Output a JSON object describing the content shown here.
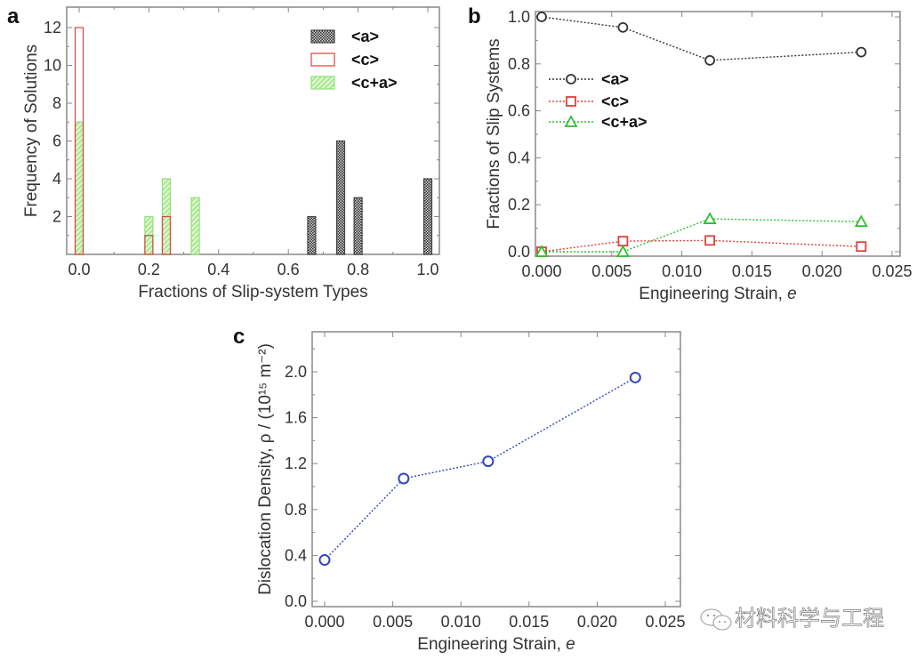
{
  "watermark": {
    "text": "材料科学与工程",
    "icon": "wechat-icon"
  },
  "colors": {
    "a": "#333333",
    "c": "#e0403a",
    "ca": "#2fbf2f",
    "density": "#3346c0",
    "frame": "#888888"
  },
  "chart_data": [
    {
      "panel": "a",
      "type": "bar",
      "title": "",
      "xlabel": "Fractions of Slip-system Types",
      "ylabel": "Frequency of Solutions",
      "xlim": [
        0.0,
        1.0
      ],
      "ylim": [
        0,
        13
      ],
      "xticks": [
        "0.0",
        "0.2",
        "0.4",
        "0.6",
        "0.8",
        "1.0"
      ],
      "yticks": [
        "2",
        "4",
        "6",
        "8",
        "10",
        "12"
      ],
      "legend_position": "top-right",
      "series": [
        {
          "name": "<a>",
          "key": "a",
          "style": "dotted-gray",
          "points": [
            {
              "x": 0.667,
              "y": 2
            },
            {
              "x": 0.75,
              "y": 6
            },
            {
              "x": 0.8,
              "y": 3
            },
            {
              "x": 1.0,
              "y": 4
            }
          ]
        },
        {
          "name": "<c>",
          "key": "c",
          "style": "hollow-red",
          "points": [
            {
              "x": 0.0,
              "y": 12
            },
            {
              "x": 0.2,
              "y": 1
            },
            {
              "x": 0.25,
              "y": 2
            }
          ]
        },
        {
          "name": "<c+a>",
          "key": "ca",
          "style": "hatched-green",
          "points": [
            {
              "x": 0.0,
              "y": 7
            },
            {
              "x": 0.2,
              "y": 2
            },
            {
              "x": 0.25,
              "y": 4
            },
            {
              "x": 0.333,
              "y": 3
            }
          ]
        }
      ]
    },
    {
      "panel": "b",
      "type": "line",
      "xlabel": "Engineering Strain, ",
      "xlabel_italic": "e",
      "ylabel": "Fractions of Slip Systems",
      "xlim": [
        0.0,
        0.025
      ],
      "ylim": [
        0.0,
        1.0
      ],
      "xticks": [
        "0.000",
        "0.005",
        "0.010",
        "0.015",
        "0.020",
        "0.025"
      ],
      "yticks": [
        "0.0",
        "0.2",
        "0.4",
        "0.6",
        "0.8",
        "1.0"
      ],
      "legend_position": "upper-left",
      "x": [
        0.0,
        0.0058,
        0.012,
        0.0228
      ],
      "series": [
        {
          "name": "<a>",
          "key": "a",
          "marker": "circle",
          "values": [
            1.0,
            0.955,
            0.815,
            0.85
          ]
        },
        {
          "name": "<c>",
          "key": "c",
          "marker": "square",
          "values": [
            0.0,
            0.045,
            0.048,
            0.022
          ]
        },
        {
          "name": "<c+a>",
          "key": "ca",
          "marker": "triangle",
          "values": [
            0.0,
            0.0,
            0.14,
            0.128
          ]
        }
      ]
    },
    {
      "panel": "c",
      "type": "line",
      "xlabel": "Engineering Strain, ",
      "xlabel_italic": "e",
      "ylabel": "Dislocation Density, ρ / (10¹⁵ m⁻²)",
      "xlim": [
        0.0,
        0.025
      ],
      "ylim": [
        0.0,
        2.4
      ],
      "xticks": [
        "0.000",
        "0.005",
        "0.010",
        "0.015",
        "0.020",
        "0.025"
      ],
      "yticks": [
        "0.0",
        "0.4",
        "0.8",
        "1.2",
        "1.6",
        "2.0"
      ],
      "x": [
        0.0,
        0.0058,
        0.012,
        0.0228
      ],
      "series": [
        {
          "name": "Dislocation Density",
          "key": "density",
          "marker": "circle",
          "values": [
            0.36,
            1.07,
            1.22,
            1.95
          ]
        }
      ]
    }
  ]
}
